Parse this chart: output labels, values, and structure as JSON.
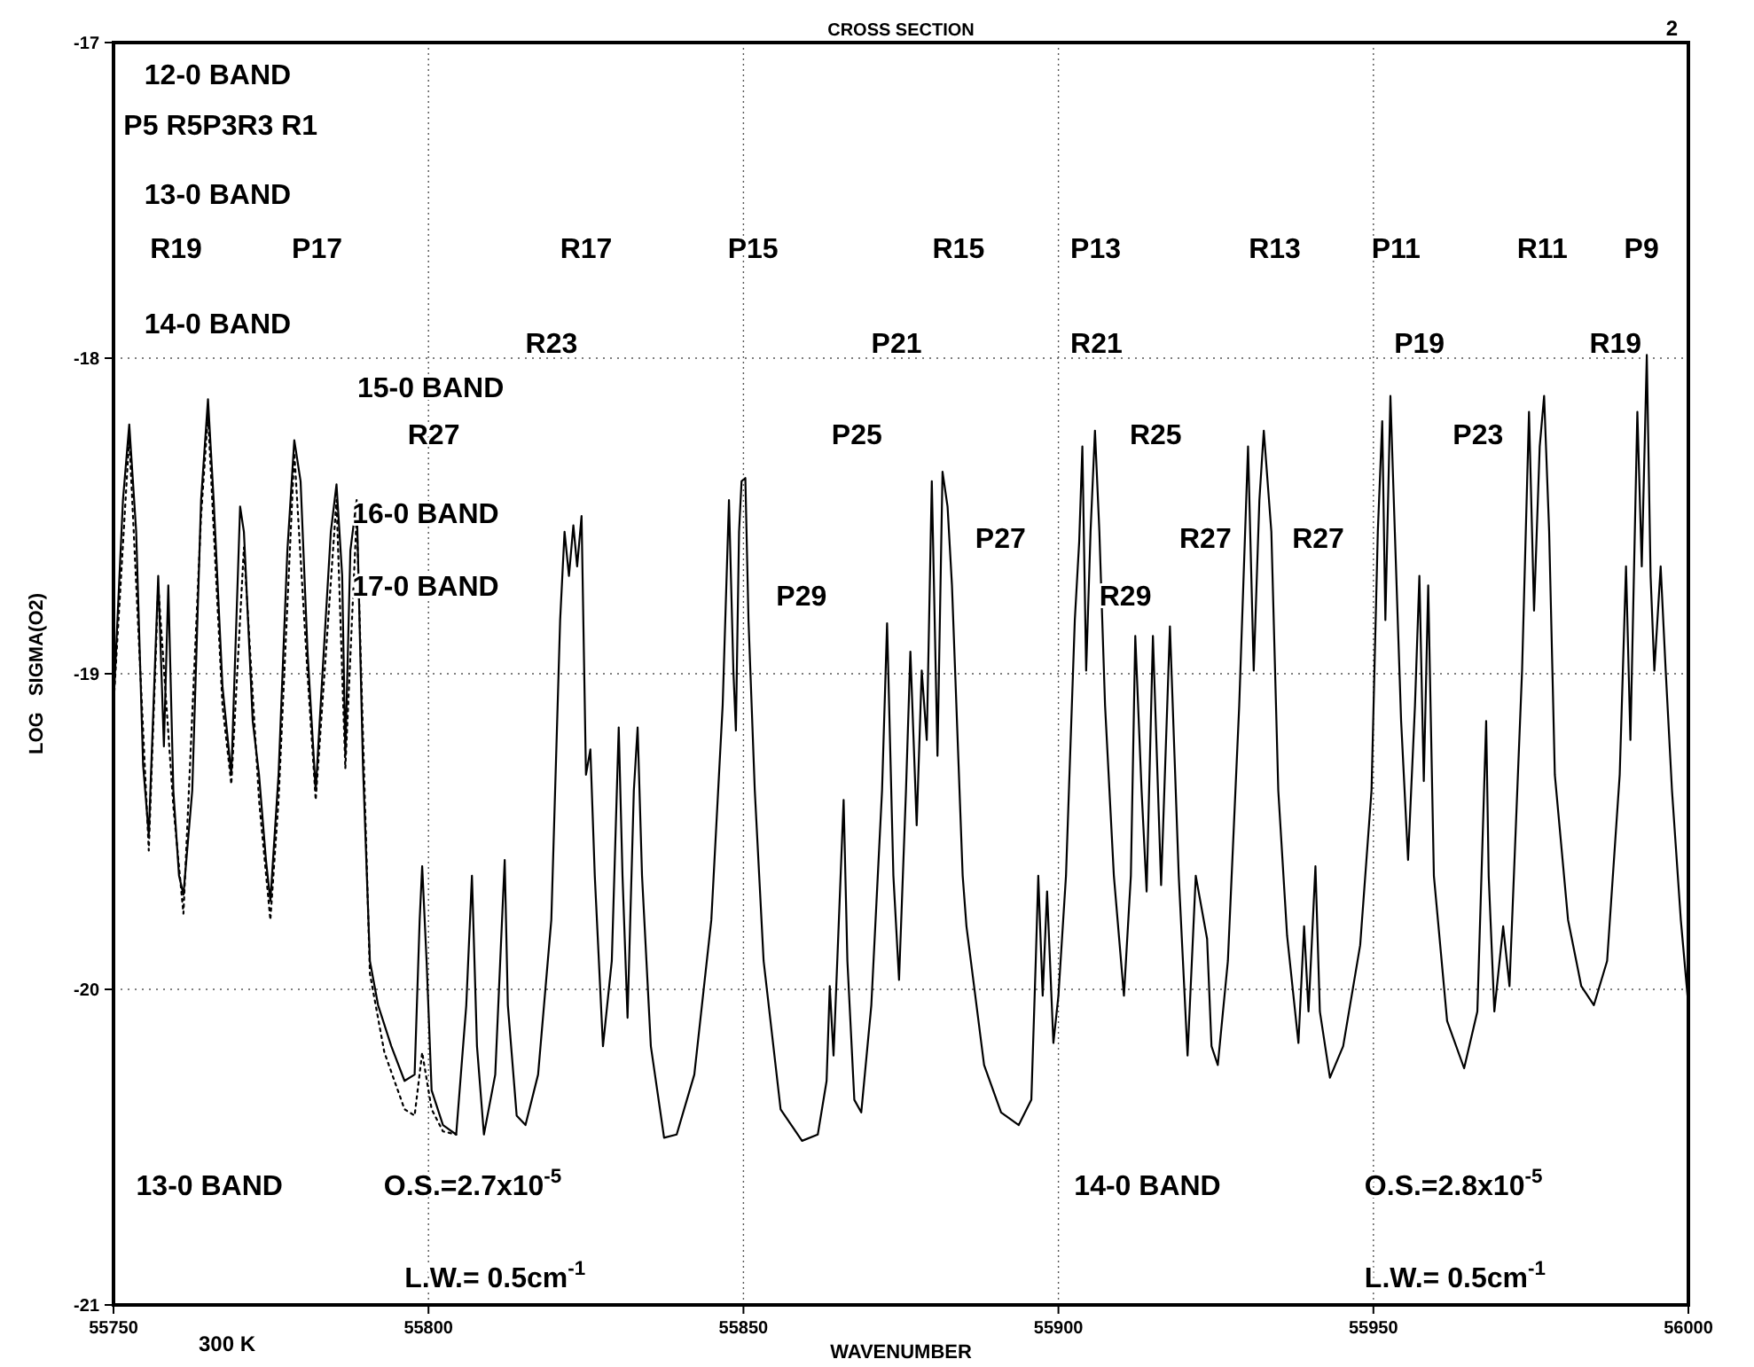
{
  "chart_data": {
    "type": "line",
    "title": "CROSS SECTION",
    "xlabel": "WAVENUMBER",
    "ylabel": "LOG   SIGMA(O2)",
    "xlim": [
      55750,
      56000
    ],
    "xticks": [
      55750,
      55800,
      55850,
      55900,
      55950,
      56000
    ],
    "ylim": [
      -21,
      -17
    ],
    "yticks": [
      -17,
      -18,
      -19,
      -20,
      -21
    ],
    "grid": true,
    "series": [
      {
        "color": "#000000",
        "line_style": "solid",
        "x": [
          55750,
          55751.5,
          55752.5,
          55753.6,
          55754.7,
          55755.6,
          55757.1,
          55758,
          55758.7,
          55759.5,
          55760.4,
          55761.1,
          55762.5,
          55763.9,
          55765,
          55765.9,
          55767.3,
          55768.7,
          55770.1,
          55770.7,
          55772.1,
          55773.1,
          55774.2,
          55774.9,
          55776.2,
          55777.6,
          55778.7,
          55779.7,
          55780.8,
          55782.1,
          55783.2,
          55784.5,
          55785.4,
          55786.3,
          55786.8,
          55787.6,
          55788.6,
          55789.6,
          55790.7,
          55792,
          55794.1,
          55796.2,
          55797.8,
          55798.6,
          55799,
          55799.7,
          55800.5,
          55802.3,
          55804.4,
          55806,
          55806.9,
          55807.7,
          55808.8,
          55810.6,
          55811.5,
          55812.1,
          55812.6,
          55814,
          55815.4,
          55817.4,
          55819.5,
          55820.9,
          55821.6,
          55822.3,
          55823,
          55823.6,
          55824.3,
          55825,
          55825.7,
          55826.4,
          55827.7,
          55829.1,
          55830.2,
          55830.8,
          55831.6,
          55832.6,
          55833.2,
          55833.9,
          55835.3,
          55837.4,
          55839.4,
          55842.2,
          55844.9,
          55846.7,
          55847.7,
          55848.4,
          55848.8,
          55849.3,
          55849.7,
          55850.3,
          55850.8,
          55851.8,
          55853.2,
          55855.9,
          55859.3,
          55861.8,
          55863.2,
          55863.7,
          55864.3,
          55865.9,
          55866.5,
          55867.6,
          55868.7,
          55870.3,
          55872,
          55872.8,
          55873.8,
          55874.7,
          55875.8,
          55876.5,
          55877.5,
          55878.3,
          55879.1,
          55879.9,
          55880.8,
          55881.6,
          55882.4,
          55883.1,
          55883.8,
          55884.8,
          55885.4,
          55888.2,
          55890.9,
          55893.7,
          55895.7,
          55896.4,
          55896.8,
          55897.5,
          55898.2,
          55899.2,
          55900,
          55901.2,
          55902.6,
          55903.3,
          55903.8,
          55904.4,
          55905.1,
          55905.8,
          55906.5,
          55907.4,
          55908.8,
          55910.4,
          55911.5,
          55912.2,
          55913.2,
          55914,
          55915,
          55916.3,
          55917.7,
          55919.1,
          55920.5,
          55921.8,
          55923.6,
          55924.3,
          55925.3,
          55926.9,
          55928.7,
          55930.1,
          55931,
          55931.9,
          55932.6,
          55933.8,
          55934.9,
          55936.3,
          55938.1,
          55939,
          55939.7,
          55940.8,
          55941.5,
          55943.1,
          55945.2,
          55947.9,
          55949.7,
          55950.7,
          55951.4,
          55951.9,
          55952.7,
          55953.4,
          55954.4,
          55955.5,
          55956.6,
          55957.3,
          55958,
          55958.7,
          55959.6,
          55961.7,
          55964.4,
          55966.5,
          55967.9,
          55968.3,
          55969.2,
          55970.6,
          55971.6,
          55973.6,
          55974.7,
          55975.5,
          55976.4,
          55977.1,
          55977.9,
          55978.8,
          55980.9,
          55983,
          55985,
          55987.1,
          55989.1,
          55990.1,
          55990.8,
          55991.9,
          55992.6,
          55993.4,
          55994,
          55994.6,
          55995.6,
          55996.4,
          55997.4,
          55998.8,
          56000
        ],
        "values": [
          -19.1,
          -18.45,
          -18.21,
          -18.55,
          -19.29,
          -19.51,
          -18.69,
          -19.23,
          -18.72,
          -19.37,
          -19.64,
          -19.7,
          -19.37,
          -18.45,
          -18.13,
          -18.45,
          -19.04,
          -19.32,
          -18.47,
          -18.55,
          -19.15,
          -19.32,
          -19.59,
          -19.72,
          -19.32,
          -18.61,
          -18.26,
          -18.39,
          -18.93,
          -19.37,
          -18.99,
          -18.55,
          -18.4,
          -18.69,
          -19.26,
          -18.61,
          -18.45,
          -19.29,
          -19.91,
          -20.05,
          -20.18,
          -20.29,
          -20.27,
          -19.78,
          -19.61,
          -19.91,
          -20.32,
          -20.43,
          -20.46,
          -20.05,
          -19.64,
          -20.18,
          -20.46,
          -20.27,
          -19.86,
          -19.59,
          -20.05,
          -20.4,
          -20.43,
          -20.27,
          -19.78,
          -18.83,
          -18.55,
          -18.69,
          -18.53,
          -18.66,
          -18.5,
          -19.32,
          -19.24,
          -19.64,
          -20.18,
          -19.91,
          -19.17,
          -19.64,
          -20.09,
          -19.37,
          -19.17,
          -19.64,
          -20.18,
          -20.47,
          -20.46,
          -20.27,
          -19.78,
          -19.1,
          -18.45,
          -18.99,
          -19.18,
          -18.55,
          -18.39,
          -18.38,
          -18.83,
          -19.37,
          -19.91,
          -20.38,
          -20.48,
          -20.46,
          -20.29,
          -19.99,
          -20.21,
          -19.4,
          -19.91,
          -20.35,
          -20.39,
          -20.05,
          -19.37,
          -18.84,
          -19.64,
          -19.97,
          -19.37,
          -18.93,
          -19.48,
          -18.99,
          -19.21,
          -18.39,
          -19.26,
          -18.36,
          -18.47,
          -18.72,
          -19.1,
          -19.64,
          -19.8,
          -20.24,
          -20.39,
          -20.43,
          -20.35,
          -19.91,
          -19.64,
          -20.02,
          -19.69,
          -20.17,
          -20.02,
          -19.64,
          -18.83,
          -18.58,
          -18.28,
          -18.99,
          -18.55,
          -18.23,
          -18.55,
          -19.1,
          -19.64,
          -20.02,
          -19.64,
          -18.88,
          -19.37,
          -19.69,
          -18.88,
          -19.67,
          -18.85,
          -19.64,
          -20.21,
          -19.64,
          -19.84,
          -20.18,
          -20.24,
          -19.91,
          -19.1,
          -18.28,
          -18.99,
          -18.45,
          -18.23,
          -18.55,
          -19.37,
          -19.83,
          -20.17,
          -19.8,
          -20.07,
          -19.61,
          -20.07,
          -20.28,
          -20.18,
          -19.86,
          -19.37,
          -18.55,
          -18.2,
          -18.83,
          -18.12,
          -18.55,
          -19.15,
          -19.59,
          -19.1,
          -18.69,
          -19.34,
          -18.72,
          -19.64,
          -20.1,
          -20.25,
          -20.07,
          -19.15,
          -19.64,
          -20.07,
          -19.8,
          -19.99,
          -18.99,
          -18.17,
          -18.8,
          -18.28,
          -18.12,
          -18.55,
          -19.32,
          -19.78,
          -19.99,
          -20.05,
          -19.91,
          -19.32,
          -18.66,
          -19.21,
          -18.17,
          -18.66,
          -17.99,
          -18.69,
          -18.99,
          -18.66,
          -18.99,
          -19.37,
          -19.78,
          -20.05
        ]
      },
      {
        "color": "#000000",
        "line_style": "dotted",
        "x": [
          55750,
          55752.5,
          55755.6,
          55757.1,
          55759.5,
          55761.1,
          55763.9,
          55765,
          55767.3,
          55768.7,
          55770.7,
          55773.1,
          55774.9,
          55776.2,
          55778.7,
          55780.8,
          55782.1,
          55785.4,
          55786.8,
          55788.6,
          55790.7,
          55793,
          55796.2,
          55797.8,
          55799,
          55800.5,
          55802.3,
          55804.4
        ],
        "values": [
          -19.1,
          -18.25,
          -19.56,
          -18.72,
          -19.42,
          -19.76,
          -18.5,
          -18.18,
          -19.1,
          -19.35,
          -18.6,
          -19.4,
          -19.78,
          -19.4,
          -18.3,
          -19,
          -19.4,
          -18.45,
          -19.3,
          -18.5,
          -19.95,
          -20.2,
          -20.38,
          -20.4,
          -20.2,
          -20.38,
          -20.45,
          -20.46
        ]
      }
    ],
    "annotations": [
      "300 K",
      "2",
      "12-0 BAND",
      "P5 R5P3R3 R1",
      "13-0 BAND",
      "R19",
      "P17",
      "R17",
      "P15",
      "R15",
      "P13",
      "R13",
      "P11",
      "R11",
      "P9",
      "14-0 BAND",
      "R23",
      "P21",
      "R21",
      "P19",
      "R19",
      "15-0 BAND",
      "R27",
      "P25",
      "R25",
      "P23",
      "16-0 BAND",
      "P27",
      "R27",
      "R27",
      "17-0 BAND",
      "P29",
      "R29",
      "13-0 BAND",
      "O.S.=2.7x10$^{-5}$",
      "L.W.= 0.5cm$^{-1}$",
      "14-0 BAND",
      "O.S.=2.8x10$^{-5}$",
      "L.W.= 0.5cm$^{-1}$"
    ]
  }
}
